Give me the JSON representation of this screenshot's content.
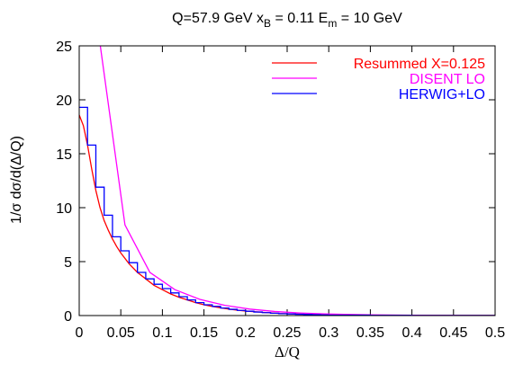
{
  "chart_data": {
    "type": "line",
    "title": {
      "part1": "Q=57.9 GeV x",
      "sub1": "B",
      "part2": " = 0.11 E",
      "sub2": "m",
      "part3": " = 10 GeV"
    },
    "xlabel": "Δ/Q",
    "ylabel": "1/σ dσ/d(Δ/Q)",
    "xlim": [
      0,
      0.5
    ],
    "ylim": [
      0,
      25
    ],
    "xticks": [
      0,
      0.05,
      0.1,
      0.15,
      0.2,
      0.25,
      0.3,
      0.35,
      0.4,
      0.45,
      0.5
    ],
    "xtick_labels": [
      "0",
      "0.05",
      "0.1",
      "0.15",
      "0.2",
      "0.25",
      "0.3",
      "0.35",
      "0.4",
      "0.45",
      "0.5"
    ],
    "yticks": [
      0,
      5,
      10,
      15,
      20,
      25
    ],
    "ytick_labels": [
      "0",
      "5",
      "10",
      "15",
      "20",
      "25"
    ],
    "grid": false,
    "legend_position": "top-right",
    "series": [
      {
        "name": "Resummed X=0.125",
        "color": "#ff0000",
        "style": "line",
        "x": [
          0,
          0.005,
          0.01,
          0.015,
          0.02,
          0.025,
          0.03,
          0.035,
          0.04,
          0.045,
          0.05,
          0.06,
          0.07,
          0.08,
          0.09,
          0.1,
          0.11,
          0.12,
          0.13,
          0.14,
          0.15,
          0.16,
          0.17,
          0.18,
          0.19,
          0.2,
          0.22,
          0.24,
          0.26,
          0.28,
          0.3,
          0.35,
          0.4,
          0.45,
          0.5
        ],
        "y": [
          18.6,
          17.6,
          15.8,
          13.6,
          11.6,
          10.0,
          8.8,
          7.9,
          7.1,
          6.4,
          5.8,
          4.8,
          4.0,
          3.4,
          2.8,
          2.4,
          2.0,
          1.7,
          1.45,
          1.2,
          1.0,
          0.85,
          0.72,
          0.6,
          0.5,
          0.42,
          0.3,
          0.2,
          0.14,
          0.1,
          0.07,
          0.03,
          0.015,
          0.008,
          0.005
        ]
      },
      {
        "name": "DISENT LO",
        "color": "#ff00ff",
        "style": "line",
        "x": [
          0.025,
          0.055,
          0.085,
          0.115,
          0.145,
          0.175,
          0.205,
          0.235,
          0.265,
          0.295,
          0.325,
          0.355,
          0.385,
          0.415,
          0.445,
          0.475,
          0.5
        ],
        "y": [
          25.2,
          8.4,
          4.0,
          2.4,
          1.5,
          0.95,
          0.6,
          0.38,
          0.24,
          0.15,
          0.1,
          0.06,
          0.04,
          0.02,
          0.01,
          0.005,
          0.002
        ]
      },
      {
        "name": "HERWIG+LO",
        "color": "#0000ff",
        "style": "step",
        "bin_edges": [
          0,
          0.01,
          0.02,
          0.03,
          0.04,
          0.05,
          0.06,
          0.07,
          0.08,
          0.09,
          0.1,
          0.11,
          0.12,
          0.13,
          0.14,
          0.15,
          0.16,
          0.17,
          0.18,
          0.19,
          0.2,
          0.21,
          0.22,
          0.23,
          0.24,
          0.25,
          0.26,
          0.27,
          0.28,
          0.29,
          0.3,
          0.35,
          0.4,
          0.45,
          0.5
        ],
        "values": [
          19.3,
          15.8,
          11.9,
          9.3,
          7.3,
          6.0,
          4.9,
          4.0,
          3.4,
          2.9,
          2.5,
          2.1,
          1.75,
          1.45,
          1.2,
          1.0,
          0.85,
          0.7,
          0.58,
          0.48,
          0.4,
          0.33,
          0.27,
          0.22,
          0.18,
          0.15,
          0.12,
          0.1,
          0.08,
          0.06,
          0.04,
          0.02,
          0.01,
          0.005
        ]
      }
    ]
  }
}
